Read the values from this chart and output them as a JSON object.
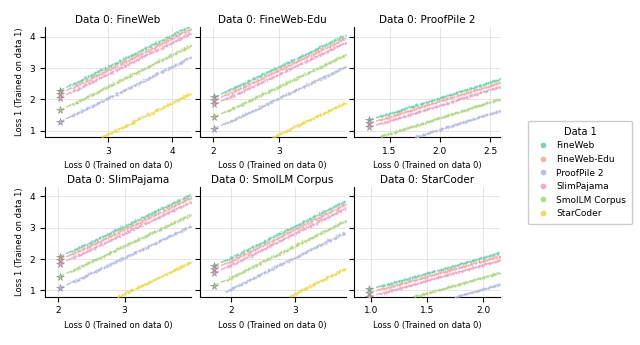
{
  "subplots": [
    {
      "title": "Data 0: FineWeb",
      "xlim": [
        2.0,
        4.3
      ],
      "xticks": [
        3,
        4
      ],
      "ylim": [
        0.8,
        4.3
      ]
    },
    {
      "title": "Data 0: FineWeb-Edu",
      "xlim": [
        1.8,
        4.0
      ],
      "xticks": [
        2,
        3
      ],
      "ylim": [
        0.8,
        4.3
      ]
    },
    {
      "title": "Data 0: ProofPile 2",
      "xlim": [
        1.15,
        2.6
      ],
      "xticks": [
        1.5,
        2.0,
        2.5
      ],
      "ylim": [
        0.8,
        4.3
      ]
    },
    {
      "title": "Data 0: SlimPajama",
      "xlim": [
        1.8,
        4.0
      ],
      "xticks": [
        2,
        3
      ],
      "ylim": [
        0.8,
        4.3
      ]
    },
    {
      "title": "Data 0: SmolLM Corpus",
      "xlim": [
        1.5,
        3.8
      ],
      "xticks": [
        2,
        3
      ],
      "ylim": [
        0.8,
        4.3
      ]
    },
    {
      "title": "Data 0: StarCoder",
      "xlim": [
        0.85,
        2.15
      ],
      "xticks": [
        1.0,
        1.5,
        2.0
      ],
      "ylim": [
        0.8,
        4.3
      ]
    }
  ],
  "datasets": [
    {
      "name": "FineWeb",
      "color": "#6ecfb0"
    },
    {
      "name": "FineWeb-Edu",
      "color": "#f5a89e"
    },
    {
      "name": "ProofPile 2",
      "color": "#b0b8e8"
    },
    {
      "name": "SlimPajama",
      "color": "#f0a0c8"
    },
    {
      "name": "SmolLM Corpus",
      "color": "#a8d878"
    },
    {
      "name": "StarCoder",
      "color": "#f0d840"
    }
  ],
  "intercepts": [
    0.05,
    -0.05,
    -0.55,
    -0.2,
    -0.9,
    -2.1
  ],
  "star_positions": [
    [
      2.18,
      2.23,
      1.68,
      2.03,
      1.73,
      1.08
    ],
    [
      2.18,
      2.23,
      1.68,
      2.03,
      1.73,
      1.08
    ],
    [
      2.18,
      2.23,
      1.68,
      2.03,
      1.73,
      1.08
    ],
    [
      2.18,
      2.23,
      1.68,
      2.03,
      1.73,
      1.08
    ],
    [
      2.18,
      2.23,
      1.68,
      2.03,
      1.73,
      1.08
    ],
    [
      2.18,
      2.23,
      1.68,
      2.03,
      1.73,
      1.08
    ]
  ],
  "ylabel": "Loss 1 (Trained on data 1)",
  "xlabel": "Loss 0 (Trained on data 0)",
  "yticks": [
    1,
    2,
    3,
    4
  ],
  "figsize": [
    6.4,
    3.45
  ],
  "dpi": 100
}
